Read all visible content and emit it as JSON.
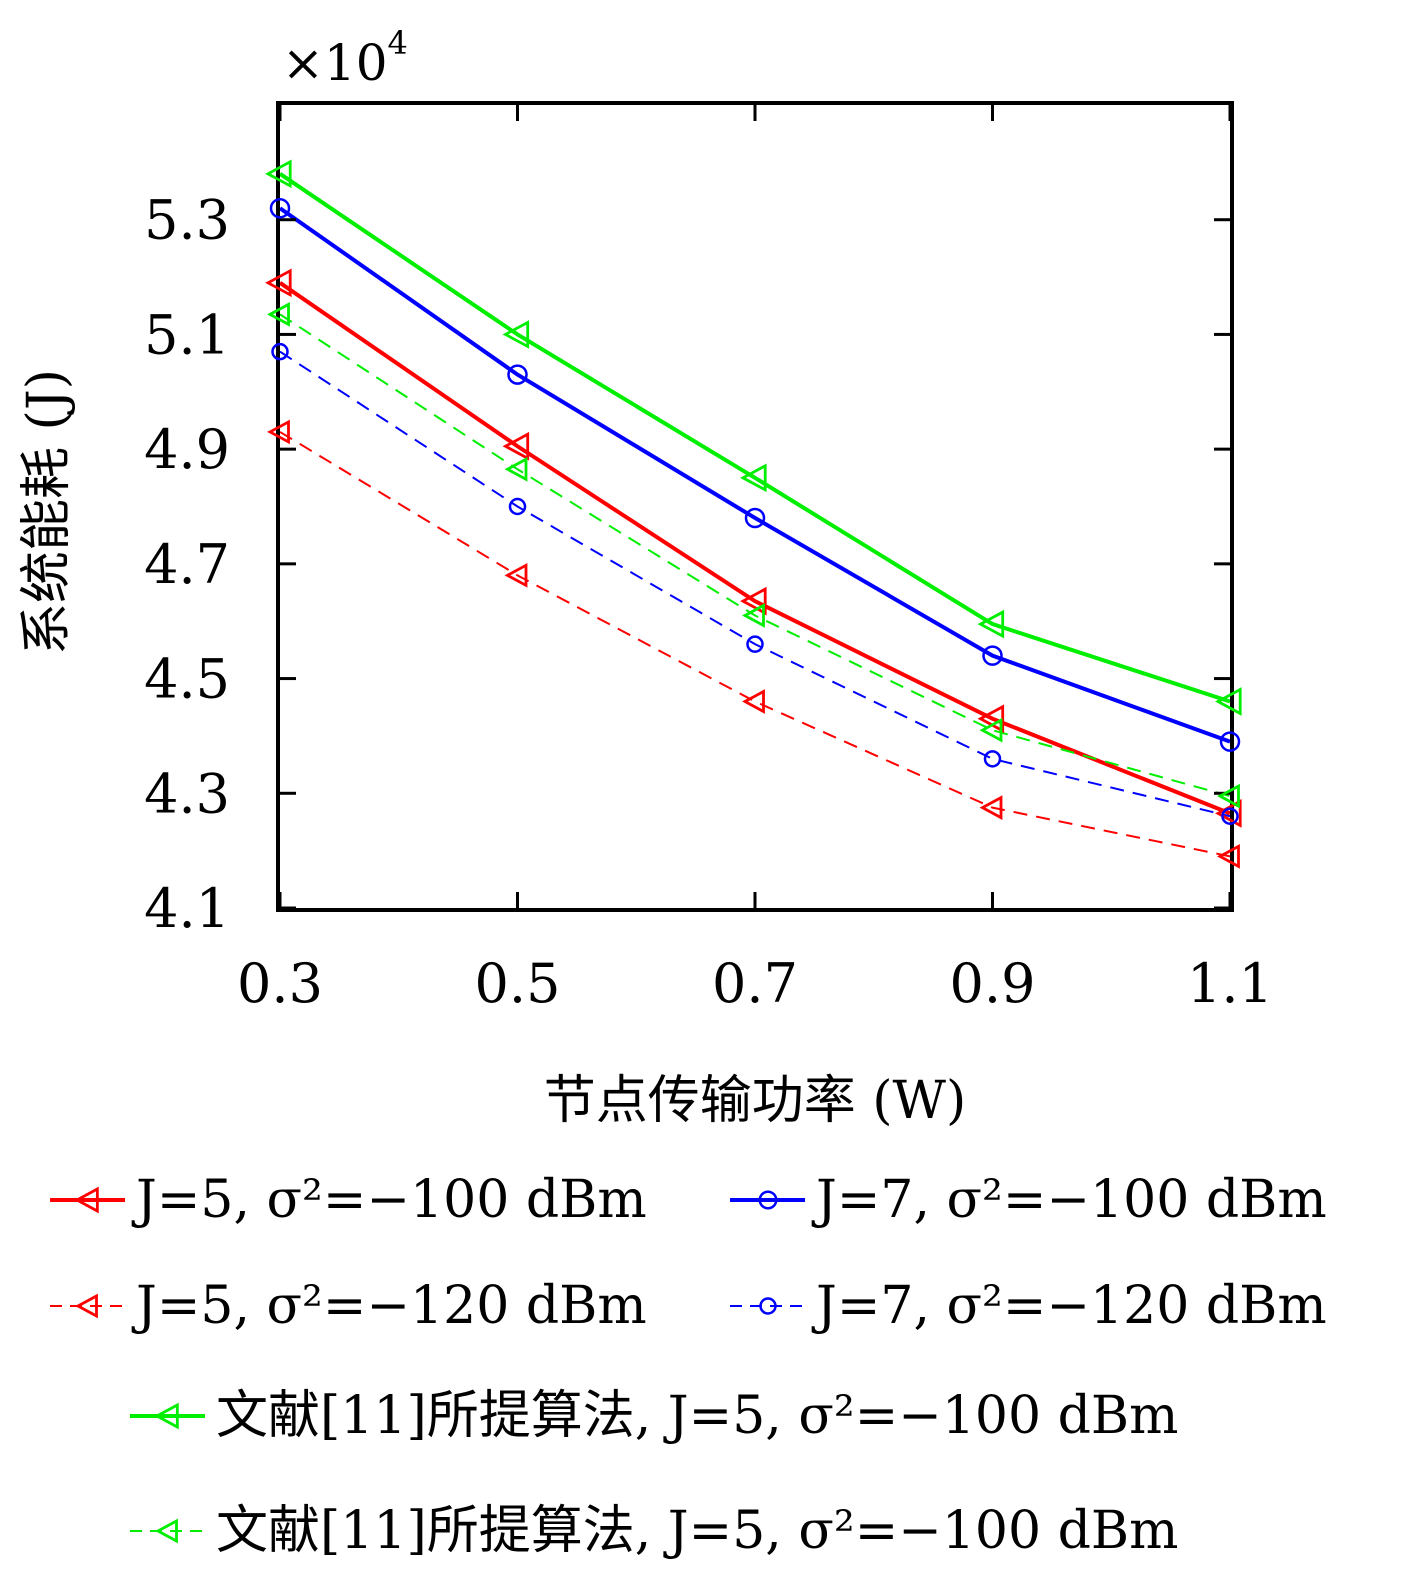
{
  "chart_data": {
    "type": "line",
    "xlabel": "节点传输功率 (W)",
    "ylabel": "系统能耗 (J)",
    "y_multiplier": "×10",
    "y_multiplier_exp": "4",
    "x": [
      0.3,
      0.5,
      0.7,
      0.9,
      1.1
    ],
    "x_tick_labels": [
      "0.3",
      "0.5",
      "0.7",
      "0.9",
      "1.1"
    ],
    "y_ticks": [
      4.1,
      4.3,
      4.5,
      4.7,
      4.9,
      5.1,
      5.3
    ],
    "y_tick_labels": [
      "4.1",
      "4.3",
      "4.5",
      "4.7",
      "4.9",
      "5.1",
      "5.3"
    ],
    "xlim": [
      0.3,
      1.1
    ],
    "ylim": [
      4.1,
      5.5
    ],
    "grid": false,
    "legend_position": "bottom",
    "series": [
      {
        "name": "J=5, σ²=−100 dBm",
        "values": [
          5.19,
          4.905,
          4.635,
          4.43,
          4.265
        ],
        "color": "#ff0000",
        "dash": "solid",
        "marker": "triangle-left"
      },
      {
        "name": "J=7, σ²=−100 dBm",
        "values": [
          5.32,
          5.03,
          4.78,
          4.54,
          4.39
        ],
        "color": "#0000ff",
        "dash": "solid",
        "marker": "circle"
      },
      {
        "name": "J=5, σ²=−120 dBm",
        "values": [
          4.93,
          4.68,
          4.46,
          4.275,
          4.19
        ],
        "color": "#ff0000",
        "dash": "dashed",
        "marker": "triangle-left"
      },
      {
        "name": "J=7, σ²=−120 dBm",
        "values": [
          5.07,
          4.8,
          4.56,
          4.36,
          4.26
        ],
        "color": "#0000ff",
        "dash": "dashed",
        "marker": "circle"
      },
      {
        "name": "文献[11]所提算法, J=5, σ²=−100 dBm",
        "values": [
          5.38,
          5.1,
          4.85,
          4.595,
          4.46
        ],
        "color": "#00ee00",
        "dash": "solid",
        "marker": "triangle-left"
      },
      {
        "name": "文献[11]所提算法, J=5, σ²=−100 dBm",
        "values": [
          5.135,
          4.865,
          4.61,
          4.41,
          4.295
        ],
        "color": "#00ee00",
        "dash": "dashed",
        "marker": "triangle-left"
      }
    ]
  }
}
